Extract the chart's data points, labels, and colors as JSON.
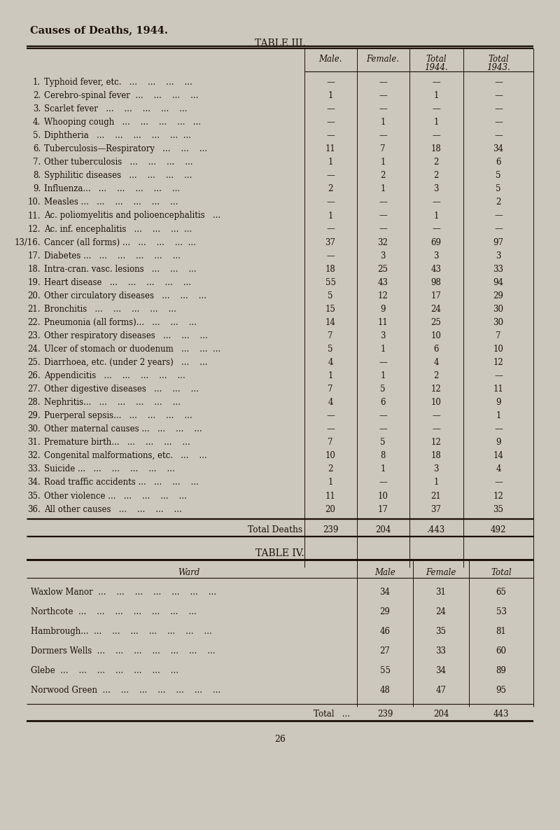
{
  "bg_color": "#ccc8be",
  "title": "Causes of Deaths, 1944.",
  "table3_title": "TABLE III.",
  "table4_title": "TABLE IV.",
  "page_num": "26",
  "rows": [
    {
      "num": "1.",
      "label": "Typhoid fever, etc.   ...    ...    ...    ...",
      "male": "—",
      "female": "—",
      "total44": "—",
      "total43": "—"
    },
    {
      "num": "2.",
      "label": "Cerebro-spinal fever  ...    ...    ...    ...",
      "male": "1",
      "female": "—",
      "total44": "1",
      "total43": "—"
    },
    {
      "num": "3.",
      "label": "Scarlet fever   ...    ...    ...    ...    ...",
      "male": "—",
      "female": "—",
      "total44": "—",
      "total43": "—"
    },
    {
      "num": "4.",
      "label": "Whooping cough   ...    ...    ...    ...   ...",
      "male": "—",
      "female": "1",
      "total44": "1",
      "total43": "—"
    },
    {
      "num": "5.",
      "label": "Diphtheria   ...    ...    ...    ...    ...  ...",
      "male": "—",
      "female": "—",
      "total44": "—",
      "total43": "—"
    },
    {
      "num": "6.",
      "label": "Tuberculosis—Respiratory   ...    ...    ...",
      "male": "11",
      "female": "7",
      "total44": "18",
      "total43": "34"
    },
    {
      "num": "7.",
      "label": "Other tuberculosis   ...    ...    ...    ...",
      "male": "1",
      "female": "1",
      "total44": "2",
      "total43": "6"
    },
    {
      "num": "8.",
      "label": "Syphilitic diseases   ...    ...    ...    ...",
      "male": "—",
      "female": "2",
      "total44": "2",
      "total43": "5"
    },
    {
      "num": "9.",
      "label": "Influenza...   ...    ...    ...    ...    ...",
      "male": "2",
      "female": "1",
      "total44": "3",
      "total43": "5"
    },
    {
      "num": "10.",
      "label": "Measles ...   ...    ...    ...    ...    ...",
      "male": "—",
      "female": "—",
      "total44": "—",
      "total43": "2"
    },
    {
      "num": "11.",
      "label": "Ac. poliomyelitis and polioencephalitis   ...",
      "male": "1",
      "female": "—",
      "total44": "1",
      "total43": "—"
    },
    {
      "num": "12.",
      "label": "Ac. inf. encephalitis   ...    ...    ...  ...",
      "male": "—",
      "female": "—",
      "total44": "—",
      "total43": "—"
    },
    {
      "num": "13/16.",
      "label": "Cancer (all forms) ...   ...    ...    ...  ...",
      "male": "37",
      "female": "32",
      "total44": "69",
      "total43": "97"
    },
    {
      "num": "17.",
      "label": "Diabetes ...   ...    ...    ...    ...    ...",
      "male": "—",
      "female": "3",
      "total44": "3",
      "total43": "3"
    },
    {
      "num": "18.",
      "label": "Intra-cran. vasc. lesions   ...    ...    ...",
      "male": "18",
      "female": "25",
      "total44": "43",
      "total43": "33"
    },
    {
      "num": "19.",
      "label": "Heart disease   ...    ...    ...    ...    ...",
      "male": "55",
      "female": "43",
      "total44": "98",
      "total43": "94"
    },
    {
      "num": "20.",
      "label": "Other circulatory diseases   ...    ...    ...",
      "male": "5",
      "female": "12",
      "total44": "17",
      "total43": "29"
    },
    {
      "num": "21.",
      "label": "Bronchitis   ...    ...    ...    ...    ...",
      "male": "15",
      "female": "9",
      "total44": "24",
      "total43": "30"
    },
    {
      "num": "22.",
      "label": "Pneumonia (all forms)...   ...    ...    ...",
      "male": "14",
      "female": "11",
      "total44": "25",
      "total43": "30"
    },
    {
      "num": "23.",
      "label": "Other respiratory diseases   ...    ...    ...",
      "male": "7",
      "female": "3",
      "total44": "10",
      "total43": "7"
    },
    {
      "num": "24.",
      "label": "Ulcer of stomach or duodenum   ...    ...  ...",
      "male": "5",
      "female": "1",
      "total44": "6",
      "total43": "10"
    },
    {
      "num": "25.",
      "label": "Diarrhoea, etc. (under 2 years)   ...    ...",
      "male": "4",
      "female": "—",
      "total44": "4",
      "total43": "12"
    },
    {
      "num": "26.",
      "label": "Appendicitis   ...    ...    ...    ...    ...",
      "male": "1",
      "female": "1",
      "total44": "2",
      "total43": "—"
    },
    {
      "num": "27.",
      "label": "Other digestive diseases   ...    ...    ...",
      "male": "7",
      "female": "5",
      "total44": "12",
      "total43": "11"
    },
    {
      "num": "28.",
      "label": "Nephritis...   ...    ...    ...    ...    ...",
      "male": "4",
      "female": "6",
      "total44": "10",
      "total43": "9"
    },
    {
      "num": "29.",
      "label": "Puerperal sepsis...   ...    ...    ...    ...",
      "male": "—",
      "female": "—",
      "total44": "—",
      "total43": "1"
    },
    {
      "num": "30.",
      "label": "Other maternal causes ...   ...    ...    ...",
      "male": "—",
      "female": "—",
      "total44": "—",
      "total43": "—"
    },
    {
      "num": "31.",
      "label": "Premature birth...   ...    ...    ...    ...",
      "male": "7",
      "female": "5",
      "total44": "12",
      "total43": "9"
    },
    {
      "num": "32.",
      "label": "Congenital malformations, etc.   ...    ...",
      "male": "10",
      "female": "8",
      "total44": "18",
      "total43": "14"
    },
    {
      "num": "33.",
      "label": "Suicide ...   ...    ...    ...    ...    ...",
      "male": "2",
      "female": "1",
      "total44": "3",
      "total43": "4"
    },
    {
      "num": "34.",
      "label": "Road traffic accidents ...   ...    ...    ...",
      "male": "1",
      "female": "—",
      "total44": "1",
      "total43": "—"
    },
    {
      "num": "35.",
      "label": "Other violence ...   ...    ...    ...    ...",
      "male": "11",
      "female": "10",
      "total44": "21",
      "total43": "12"
    },
    {
      "num": "36.",
      "label": "All other causes   ...    ...    ...    ...",
      "male": "20",
      "female": "17",
      "total44": "37",
      "total43": "35"
    }
  ],
  "total_row": {
    "male": "239",
    "female": "204",
    "total44": ".443",
    "total43": "492"
  },
  "table4_rows": [
    {
      "ward": "Waxlow Manor",
      "male": "34",
      "female": "31",
      "total": "65"
    },
    {
      "ward": "Northcote",
      "male": "29",
      "female": "24",
      "total": "53"
    },
    {
      "ward": "Hambrough...",
      "male": "46",
      "female": "35",
      "total": "81"
    },
    {
      "ward": "Dormers Wells",
      "male": "27",
      "female": "33",
      "total": "60"
    },
    {
      "ward": "Glebe",
      "male": "55",
      "female": "34",
      "total": "89"
    },
    {
      "ward": "Norwood Green",
      "male": "48",
      "female": "47",
      "total": "95"
    }
  ],
  "table4_total": {
    "male": "239",
    "female": "204",
    "total": "443"
  },
  "dots": "  ...    ...    ...    ...    ...    ...    ..."
}
